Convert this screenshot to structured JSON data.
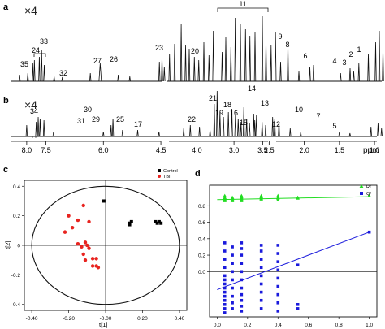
{
  "panel_labels": {
    "a": "a",
    "b": "b",
    "c": "c",
    "d": "d"
  },
  "chart_data": [
    {
      "id": "a",
      "type": "line",
      "panel": "a",
      "magnification": "×4",
      "peak_labels": [
        {
          "label": "35",
          "ppm": 8.35
        },
        {
          "label": "24",
          "ppm": 7.9
        },
        {
          "label": "33",
          "ppm": 7.65
        },
        {
          "label": "32",
          "ppm": 7.05
        },
        {
          "label": "27",
          "ppm": 6.05
        },
        {
          "label": "26",
          "ppm": 5.35
        },
        {
          "label": "23",
          "ppm": 4.1
        },
        {
          "label": "20",
          "ppm": 3.55
        },
        {
          "label": "11",
          "ppm": 2.85
        },
        {
          "label": "9",
          "ppm": 2.37
        },
        {
          "label": "8",
          "ppm": 2.2
        },
        {
          "label": "6",
          "ppm": 1.85
        },
        {
          "label": "4",
          "ppm": 1.35
        },
        {
          "label": "3",
          "ppm": 1.23
        },
        {
          "label": "2",
          "ppm": 1.1
        },
        {
          "label": "1",
          "ppm": 0.95
        }
      ]
    },
    {
      "id": "b",
      "type": "line",
      "panel": "b",
      "magnification": "×4",
      "xlabel": "ppm",
      "x_ticks": [
        {
          "label": "8.0",
          "ppm": 8.0
        },
        {
          "label": "7.5",
          "ppm": 7.5
        },
        {
          "label": "6.0",
          "ppm": 6.0
        },
        {
          "label": "4.5",
          "ppm": 4.5
        },
        {
          "label": "4.0",
          "ppm": 4.0
        },
        {
          "label": "3.5",
          "ppm": 3.5
        },
        {
          "label": "3.0",
          "ppm": 3.0
        },
        {
          "label": "2.5",
          "ppm": 2.5
        },
        {
          "label": "2.0",
          "ppm": 2.0
        },
        {
          "label": "1.5",
          "ppm": 1.5
        },
        {
          "label": "1.0",
          "ppm": 1.0
        }
      ],
      "peak_labels": [
        {
          "label": "34",
          "ppm": 7.7
        },
        {
          "label": "30",
          "ppm": 5.75
        },
        {
          "label": "31",
          "ppm": 5.8
        },
        {
          "label": "29",
          "ppm": 5.45
        },
        {
          "label": "25",
          "ppm": 4.55
        },
        {
          "label": "17",
          "ppm": 4.05
        },
        {
          "label": "22",
          "ppm": 3.55
        },
        {
          "label": "21",
          "ppm": 3.25
        },
        {
          "label": "19",
          "ppm": 3.15
        },
        {
          "label": "18",
          "ppm": 3.07
        },
        {
          "label": "16",
          "ppm": 3.0
        },
        {
          "label": "15",
          "ppm": 2.9
        },
        {
          "label": "14",
          "ppm": 2.85
        },
        {
          "label": "13",
          "ppm": 2.7
        },
        {
          "label": "12",
          "ppm": 2.55
        },
        {
          "label": "10",
          "ppm": 2.4
        },
        {
          "label": "7",
          "ppm": 2.2
        },
        {
          "label": "5",
          "ppm": 1.5
        }
      ]
    },
    {
      "id": "c",
      "type": "scatter",
      "panel": "c",
      "xlabel": "t[1]",
      "ylabel": "t[2]",
      "xlim": [
        -0.44,
        0.44
      ],
      "ylim": [
        -0.44,
        0.44
      ],
      "x_ticks": [
        -0.4,
        -0.2,
        0.0,
        0.2,
        0.4
      ],
      "y_ticks": [
        0.4,
        0.2,
        0.0,
        -0.2,
        -0.4
      ],
      "x_tick_labels": [
        "-0.40",
        "-0.20",
        "-0.00",
        "0.20",
        "0.40"
      ],
      "y_tick_labels": [
        "0.4",
        "0.2",
        "0",
        "-0.2",
        "-0.4"
      ],
      "legend_position": "top-right",
      "ellipse": {
        "rx": 0.4,
        "ry": 0.4
      },
      "series": [
        {
          "name": "Control",
          "color": "#000000",
          "marker": "square",
          "points": [
            [
              -0.01,
              0.3
            ],
            [
              0.13,
              0.15
            ],
            [
              0.13,
              0.14
            ],
            [
              0.14,
              0.16
            ],
            [
              0.27,
              0.16
            ],
            [
              0.28,
              0.15
            ],
            [
              0.29,
              0.16
            ],
            [
              0.3,
              0.15
            ]
          ]
        },
        {
          "name": "TBI",
          "color": "#e8231f",
          "marker": "circle",
          "points": [
            [
              -0.12,
              0.27
            ],
            [
              -0.2,
              0.2
            ],
            [
              -0.15,
              0.17
            ],
            [
              -0.09,
              0.16
            ],
            [
              -0.18,
              0.12
            ],
            [
              -0.22,
              0.09
            ],
            [
              -0.11,
              0.02
            ],
            [
              -0.15,
              0.01
            ],
            [
              -0.1,
              0.0
            ],
            [
              -0.13,
              -0.01
            ],
            [
              -0.09,
              -0.02
            ],
            [
              -0.12,
              -0.06
            ],
            [
              -0.11,
              -0.1
            ],
            [
              -0.07,
              -0.09
            ],
            [
              -0.05,
              -0.09
            ],
            [
              -0.07,
              -0.14
            ],
            [
              -0.05,
              -0.14
            ],
            [
              -0.04,
              -0.15
            ]
          ]
        }
      ]
    },
    {
      "id": "d",
      "type": "scatter",
      "panel": "d",
      "xlim": [
        -0.05,
        1.05
      ],
      "ylim": [
        -0.55,
        1.05
      ],
      "x_ticks": [
        0.0,
        0.2,
        0.4,
        0.6,
        0.8,
        1.0
      ],
      "y_ticks": [
        0.0,
        0.2,
        0.4,
        0.6,
        0.8
      ],
      "x_tick_labels": [
        "0.0",
        "0.2",
        "0.4",
        "0.6",
        "0.8",
        "1.0"
      ],
      "y_tick_labels": [
        "0.0",
        "0.2",
        "0.4",
        "0.6",
        "0.8"
      ],
      "legend_position": "top-right",
      "series": [
        {
          "name": "R²",
          "color": "#22dd22",
          "marker": "triangle",
          "line": {
            "x": [
              0.0,
              1.0
            ],
            "y": [
              0.875,
              0.91
            ]
          },
          "columns": [
            {
              "x": 0.05,
              "y": [
                0.92,
                0.9,
                0.89,
                0.88,
                0.87,
                0.86
              ]
            },
            {
              "x": 0.1,
              "y": [
                0.9,
                0.89,
                0.88,
                0.87,
                0.86
              ]
            },
            {
              "x": 0.16,
              "y": [
                0.92,
                0.91,
                0.9,
                0.89,
                0.88,
                0.87,
                0.86
              ]
            },
            {
              "x": 0.29,
              "y": [
                0.92,
                0.91,
                0.9,
                0.89,
                0.88
              ]
            },
            {
              "x": 0.4,
              "y": [
                0.92,
                0.9,
                0.89,
                0.87
              ]
            },
            {
              "x": 0.53,
              "y": [
                0.9,
                0.89
              ]
            },
            {
              "x": 1.0,
              "y": [
                0.92
              ]
            }
          ]
        },
        {
          "name": "Q²",
          "color": "#1a1adc",
          "marker": "square",
          "line": {
            "x": [
              0.0,
              1.0
            ],
            "y": [
              -0.22,
              0.48
            ]
          },
          "columns": [
            {
              "x": 0.05,
              "y": [
                0.35,
                0.25,
                0.15,
                0.05,
                -0.05,
                -0.1,
                -0.15,
                -0.2,
                -0.25,
                -0.3,
                -0.35,
                -0.4,
                -0.45,
                -0.5
              ]
            },
            {
              "x": 0.1,
              "y": [
                0.3,
                0.2,
                0.1,
                0.0,
                -0.1,
                -0.2,
                -0.3,
                -0.38,
                -0.45
              ]
            },
            {
              "x": 0.16,
              "y": [
                0.35,
                0.28,
                0.2,
                0.1,
                0.0,
                -0.1,
                -0.2,
                -0.28,
                -0.35,
                -0.42,
                -0.48
              ]
            },
            {
              "x": 0.29,
              "y": [
                0.32,
                0.25,
                0.15,
                0.05,
                -0.05,
                -0.15,
                -0.25,
                -0.35,
                -0.45
              ]
            },
            {
              "x": 0.4,
              "y": [
                0.32,
                0.22,
                0.12,
                0.02,
                -0.08,
                -0.18,
                -0.28,
                -0.38,
                -0.48
              ]
            },
            {
              "x": 0.53,
              "y": [
                0.08,
                -0.4,
                -0.45
              ]
            },
            {
              "x": 1.0,
              "y": [
                0.48
              ]
            }
          ]
        }
      ]
    }
  ]
}
